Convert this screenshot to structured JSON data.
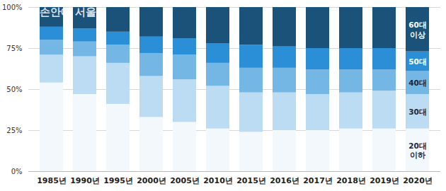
{
  "chart_data": {
    "type": "bar",
    "stacked": true,
    "annotations": [
      "내 손안에 서울"
    ],
    "categories": [
      "1985년",
      "1990년",
      "1995년",
      "2000년",
      "2005년",
      "2010년",
      "2015년",
      "2016년",
      "2017년",
      "2018년",
      "2019년",
      "2020년"
    ],
    "series": [
      {
        "name": "20대 이하",
        "color": "#f3f8fd",
        "values": [
          54,
          47,
          41,
          33,
          30,
          26,
          24,
          25,
          25,
          26,
          26,
          26
        ]
      },
      {
        "name": "30대",
        "color": "#bcdcf3",
        "values": [
          17,
          23,
          25,
          25,
          26,
          26,
          24,
          23,
          22,
          22,
          23,
          21
        ]
      },
      {
        "name": "40대",
        "color": "#74b6e4",
        "values": [
          9,
          9,
          11,
          14,
          15,
          14,
          15,
          15,
          15,
          14,
          13,
          14
        ]
      },
      {
        "name": "50대",
        "color": "#2b8fd8",
        "values": [
          8,
          8,
          8,
          10,
          10,
          12,
          14,
          13,
          13,
          13,
          13,
          12
        ]
      },
      {
        "name": "60대 이상",
        "color": "#1b5279",
        "values": [
          12,
          13,
          15,
          18,
          19,
          22,
          23,
          24,
          25,
          25,
          25,
          27
        ]
      }
    ],
    "ylim": [
      0,
      100
    ],
    "yticks": [
      {
        "value": 0,
        "label": "0%"
      },
      {
        "value": 25,
        "label": "25%"
      },
      {
        "value": 50,
        "label": "50%"
      },
      {
        "value": 75,
        "label": "75%"
      },
      {
        "value": 100,
        "label": "100%"
      }
    ],
    "grid": true,
    "tick_labels": true
  }
}
